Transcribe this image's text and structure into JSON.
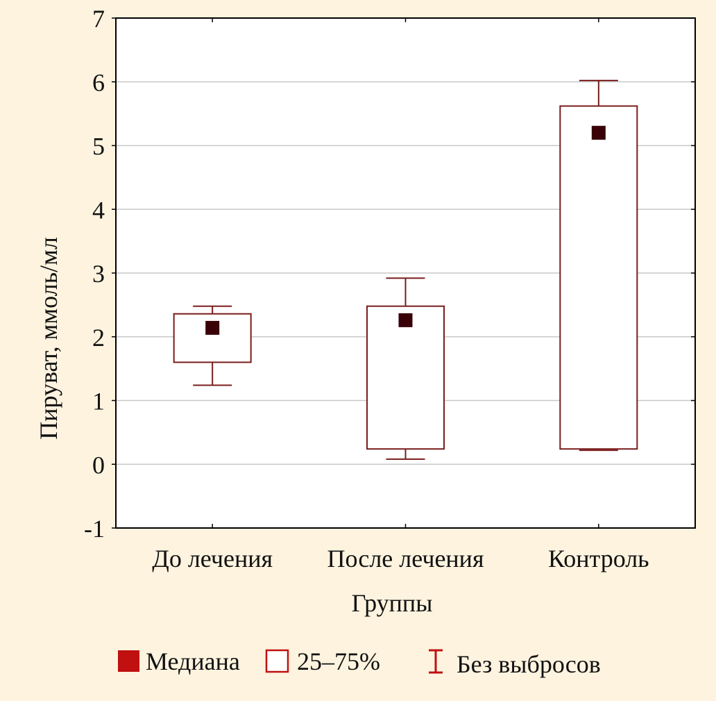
{
  "chart_data": {
    "type": "box",
    "title": "",
    "ylabel": "Пируват, ммоль/мл",
    "xlabel": "Группы",
    "ylim": [
      -1,
      7
    ],
    "yticks": [
      -1,
      0,
      1,
      2,
      3,
      4,
      5,
      6,
      7
    ],
    "grid": true,
    "categories": [
      "До лечения",
      "После лечения",
      "Контроль"
    ],
    "median": [
      2.14,
      2.26,
      5.2
    ],
    "q1": [
      1.6,
      0.24,
      0.24
    ],
    "q3": [
      2.36,
      2.48,
      5.62
    ],
    "whisker_low": [
      1.24,
      0.08,
      0.22
    ],
    "whisker_high": [
      2.48,
      2.92,
      6.02
    ],
    "legend_position": "bottom",
    "legend": [
      {
        "label": "Медиана",
        "symbol": "filled-square"
      },
      {
        "label": "25–75%",
        "symbol": "open-square"
      },
      {
        "label": "Без выбросов",
        "symbol": "whisker"
      }
    ],
    "colors": {
      "background": "#fdf3df",
      "box": "#7a1c1c",
      "median": "#3a0008",
      "legend_median": "#c01010",
      "legend_whisker": "#c01010",
      "grid": "#c8c8c8"
    }
  }
}
